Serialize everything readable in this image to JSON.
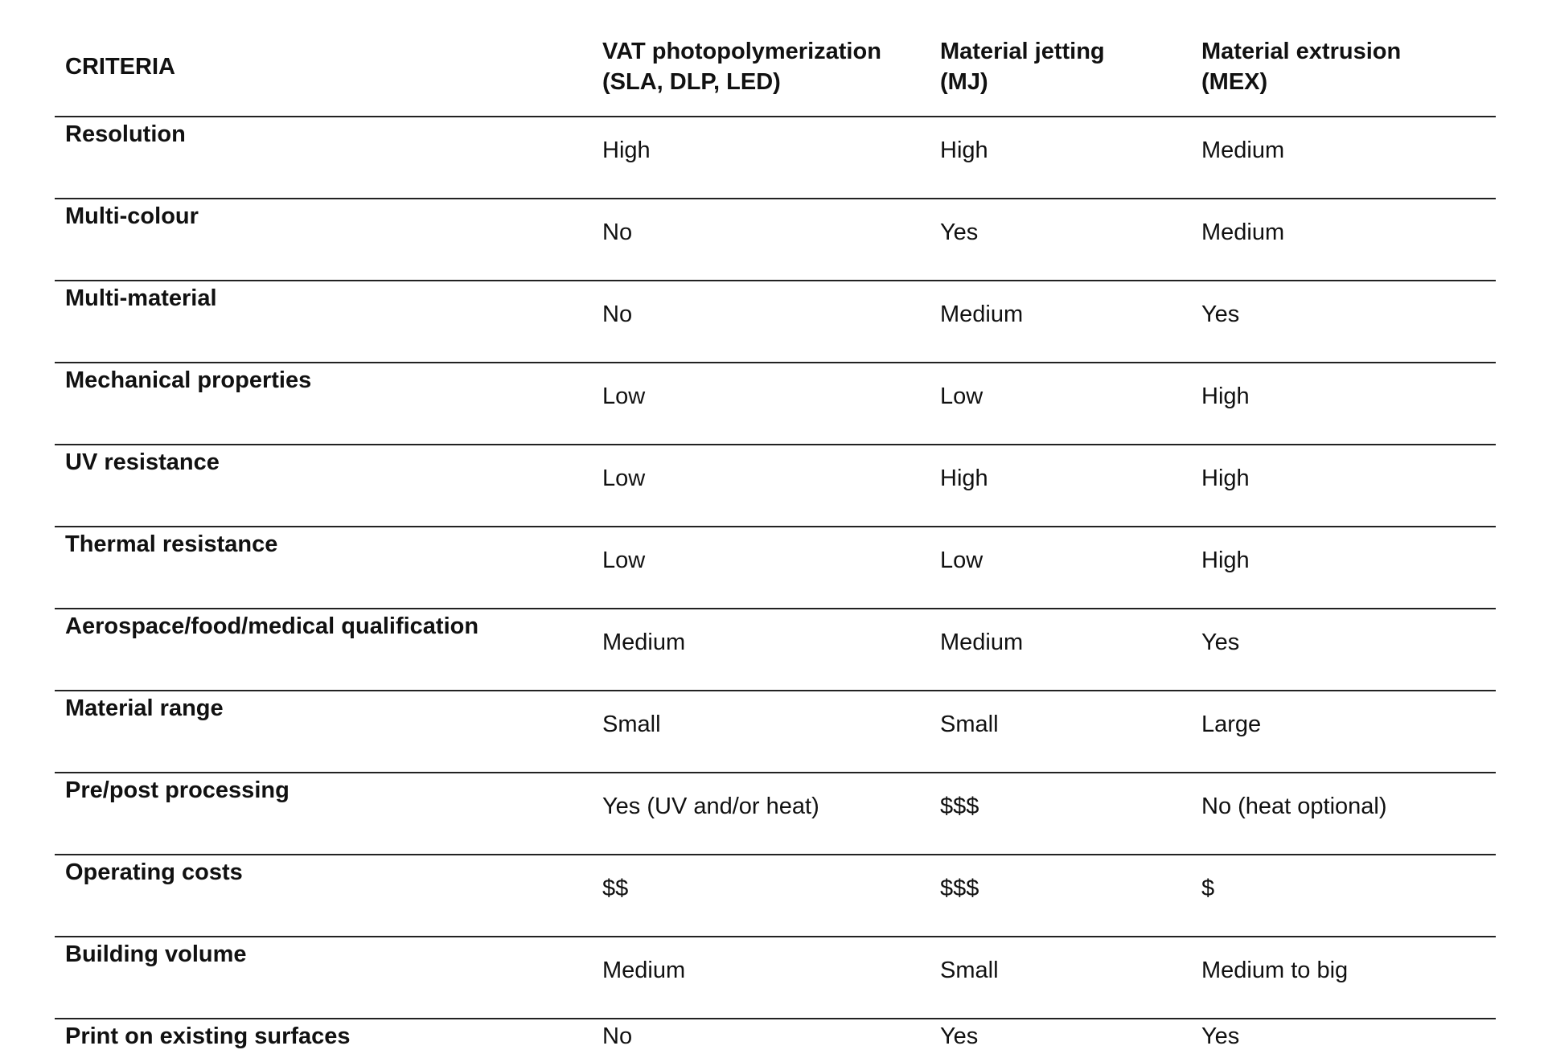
{
  "table": {
    "headers": [
      {
        "line1": "CRITERIA",
        "line2": ""
      },
      {
        "line1": "VAT photopolymerization",
        "line2": "(SLA, DLP, LED)"
      },
      {
        "line1": "Material jetting",
        "line2": "(MJ)"
      },
      {
        "line1": "Material extrusion",
        "line2": "(MEX)"
      }
    ],
    "rows": [
      {
        "criteria": "Resolution",
        "vat": "High",
        "mj": "High",
        "mex": "Medium"
      },
      {
        "criteria": "Multi-colour",
        "vat": "No",
        "mj": "Yes",
        "mex": "Medium"
      },
      {
        "criteria": "Multi-material",
        "vat": "No",
        "mj": "Medium",
        "mex": "Yes"
      },
      {
        "criteria": "Mechanical properties",
        "vat": "Low",
        "mj": "Low",
        "mex": "High"
      },
      {
        "criteria": "UV resistance",
        "vat": "Low",
        "mj": "High",
        "mex": "High"
      },
      {
        "criteria": "Thermal resistance",
        "vat": "Low",
        "mj": "Low",
        "mex": "High"
      },
      {
        "criteria": "Aerospace/food/medical qualification",
        "vat": "Medium",
        "mj": "Medium",
        "mex": "Yes"
      },
      {
        "criteria": "Material range",
        "vat": "Small",
        "mj": "Small",
        "mex": "Large"
      },
      {
        "criteria": "Pre/post processing",
        "vat": "Yes (UV and/or heat)",
        "mj": "$$$",
        "mex": "No (heat optional)"
      },
      {
        "criteria": "Operating costs",
        "vat": "$$",
        "mj": "$$$",
        "mex": "$"
      },
      {
        "criteria": "Building volume",
        "vat": "Medium",
        "mj": "Small",
        "mex": "Medium to big"
      },
      {
        "criteria": "Print on existing surfaces",
        "vat": "No",
        "mj": "Yes",
        "mex": "Yes"
      }
    ]
  }
}
